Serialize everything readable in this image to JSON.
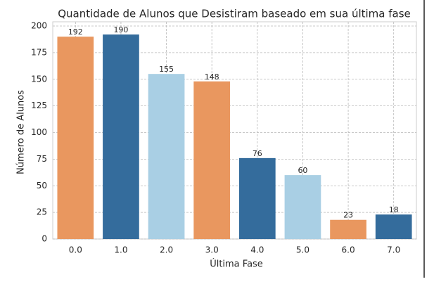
{
  "chart_data": {
    "type": "bar",
    "title": "Quantidade de Alunos que Desistiram baseado em sua última fase",
    "x_label": "Última Fase",
    "y_label": "Número de Alunos",
    "categories": [
      "0.0",
      "1.0",
      "2.0",
      "3.0",
      "4.0",
      "5.0",
      "6.0",
      "7.0"
    ],
    "values": [
      190,
      192,
      155,
      148,
      76,
      60,
      18,
      23
    ],
    "colors": [
      "#e9975f",
      "#346c9c",
      "#a9cfe4",
      "#e9975f",
      "#346c9c",
      "#a9cfe4",
      "#e9975f",
      "#346c9c"
    ],
    "annotations": [
      "192",
      "190",
      "155",
      "148",
      "76",
      "60",
      "23",
      "18"
    ],
    "ylim": [
      0,
      200
    ],
    "yticks": [
      0,
      25,
      50,
      75,
      100,
      125,
      150,
      175,
      200
    ],
    "grid": true
  }
}
